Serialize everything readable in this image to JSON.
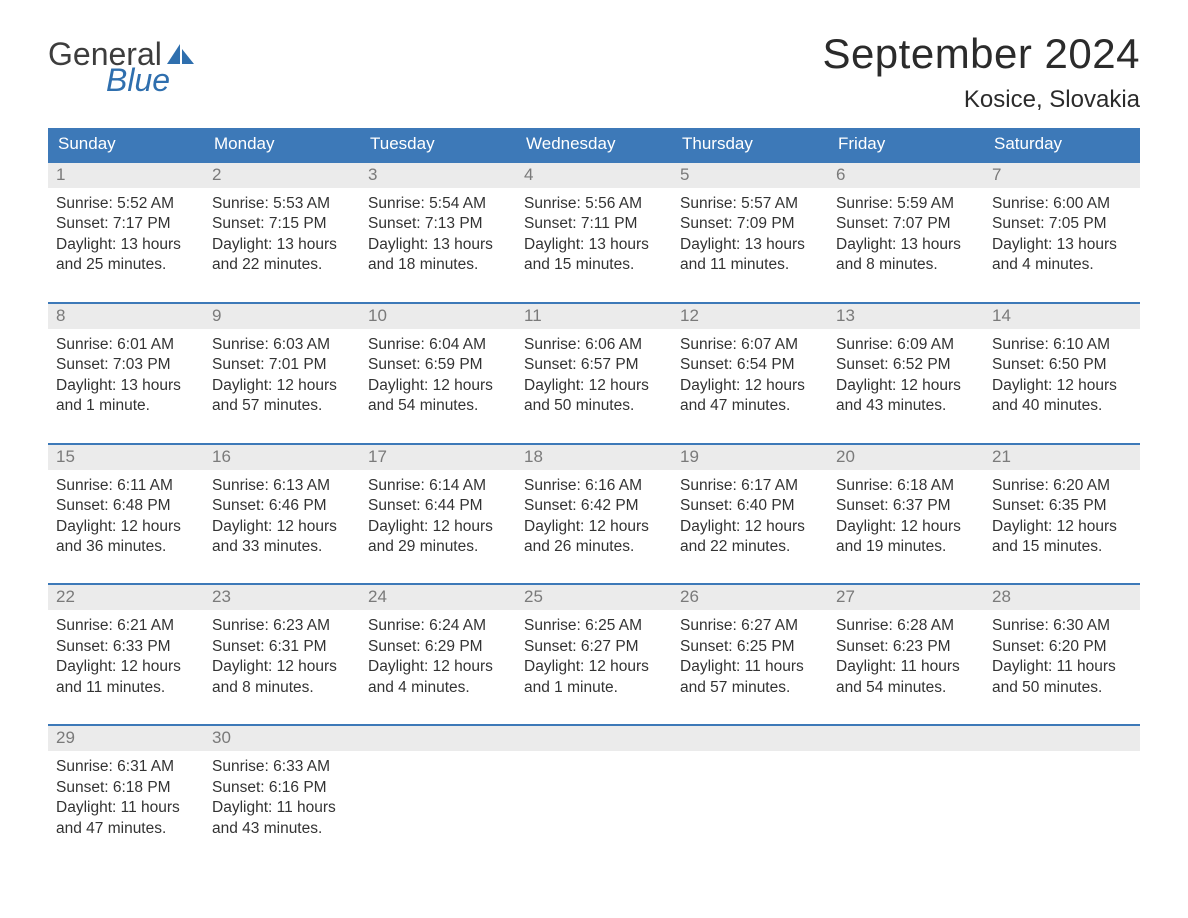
{
  "logo": {
    "word1": "General",
    "word2": "Blue"
  },
  "title": "September 2024",
  "location": "Kosice, Slovakia",
  "weekdays": [
    "Sunday",
    "Monday",
    "Tuesday",
    "Wednesday",
    "Thursday",
    "Friday",
    "Saturday"
  ],
  "colors": {
    "header_bg": "#3d79b8",
    "header_text": "#ffffff",
    "daynum_bg": "#ebebeb",
    "daynum_text": "#7a7a7a",
    "body_text": "#333333",
    "rule": "#3d79b8",
    "logo_gray": "#3d3d3d",
    "logo_blue": "#2f6fae"
  },
  "weeks": [
    [
      {
        "n": "1",
        "sunrise": "5:52 AM",
        "sunset": "7:17 PM",
        "daylight": "13 hours and 25 minutes."
      },
      {
        "n": "2",
        "sunrise": "5:53 AM",
        "sunset": "7:15 PM",
        "daylight": "13 hours and 22 minutes."
      },
      {
        "n": "3",
        "sunrise": "5:54 AM",
        "sunset": "7:13 PM",
        "daylight": "13 hours and 18 minutes."
      },
      {
        "n": "4",
        "sunrise": "5:56 AM",
        "sunset": "7:11 PM",
        "daylight": "13 hours and 15 minutes."
      },
      {
        "n": "5",
        "sunrise": "5:57 AM",
        "sunset": "7:09 PM",
        "daylight": "13 hours and 11 minutes."
      },
      {
        "n": "6",
        "sunrise": "5:59 AM",
        "sunset": "7:07 PM",
        "daylight": "13 hours and 8 minutes."
      },
      {
        "n": "7",
        "sunrise": "6:00 AM",
        "sunset": "7:05 PM",
        "daylight": "13 hours and 4 minutes."
      }
    ],
    [
      {
        "n": "8",
        "sunrise": "6:01 AM",
        "sunset": "7:03 PM",
        "daylight": "13 hours and 1 minute."
      },
      {
        "n": "9",
        "sunrise": "6:03 AM",
        "sunset": "7:01 PM",
        "daylight": "12 hours and 57 minutes."
      },
      {
        "n": "10",
        "sunrise": "6:04 AM",
        "sunset": "6:59 PM",
        "daylight": "12 hours and 54 minutes."
      },
      {
        "n": "11",
        "sunrise": "6:06 AM",
        "sunset": "6:57 PM",
        "daylight": "12 hours and 50 minutes."
      },
      {
        "n": "12",
        "sunrise": "6:07 AM",
        "sunset": "6:54 PM",
        "daylight": "12 hours and 47 minutes."
      },
      {
        "n": "13",
        "sunrise": "6:09 AM",
        "sunset": "6:52 PM",
        "daylight": "12 hours and 43 minutes."
      },
      {
        "n": "14",
        "sunrise": "6:10 AM",
        "sunset": "6:50 PM",
        "daylight": "12 hours and 40 minutes."
      }
    ],
    [
      {
        "n": "15",
        "sunrise": "6:11 AM",
        "sunset": "6:48 PM",
        "daylight": "12 hours and 36 minutes."
      },
      {
        "n": "16",
        "sunrise": "6:13 AM",
        "sunset": "6:46 PM",
        "daylight": "12 hours and 33 minutes."
      },
      {
        "n": "17",
        "sunrise": "6:14 AM",
        "sunset": "6:44 PM",
        "daylight": "12 hours and 29 minutes."
      },
      {
        "n": "18",
        "sunrise": "6:16 AM",
        "sunset": "6:42 PM",
        "daylight": "12 hours and 26 minutes."
      },
      {
        "n": "19",
        "sunrise": "6:17 AM",
        "sunset": "6:40 PM",
        "daylight": "12 hours and 22 minutes."
      },
      {
        "n": "20",
        "sunrise": "6:18 AM",
        "sunset": "6:37 PM",
        "daylight": "12 hours and 19 minutes."
      },
      {
        "n": "21",
        "sunrise": "6:20 AM",
        "sunset": "6:35 PM",
        "daylight": "12 hours and 15 minutes."
      }
    ],
    [
      {
        "n": "22",
        "sunrise": "6:21 AM",
        "sunset": "6:33 PM",
        "daylight": "12 hours and 11 minutes."
      },
      {
        "n": "23",
        "sunrise": "6:23 AM",
        "sunset": "6:31 PM",
        "daylight": "12 hours and 8 minutes."
      },
      {
        "n": "24",
        "sunrise": "6:24 AM",
        "sunset": "6:29 PM",
        "daylight": "12 hours and 4 minutes."
      },
      {
        "n": "25",
        "sunrise": "6:25 AM",
        "sunset": "6:27 PM",
        "daylight": "12 hours and 1 minute."
      },
      {
        "n": "26",
        "sunrise": "6:27 AM",
        "sunset": "6:25 PM",
        "daylight": "11 hours and 57 minutes."
      },
      {
        "n": "27",
        "sunrise": "6:28 AM",
        "sunset": "6:23 PM",
        "daylight": "11 hours and 54 minutes."
      },
      {
        "n": "28",
        "sunrise": "6:30 AM",
        "sunset": "6:20 PM",
        "daylight": "11 hours and 50 minutes."
      }
    ],
    [
      {
        "n": "29",
        "sunrise": "6:31 AM",
        "sunset": "6:18 PM",
        "daylight": "11 hours and 47 minutes."
      },
      {
        "n": "30",
        "sunrise": "6:33 AM",
        "sunset": "6:16 PM",
        "daylight": "11 hours and 43 minutes."
      },
      null,
      null,
      null,
      null,
      null
    ]
  ],
  "labels": {
    "sunrise": "Sunrise: ",
    "sunset": "Sunset: ",
    "daylight": "Daylight: "
  }
}
